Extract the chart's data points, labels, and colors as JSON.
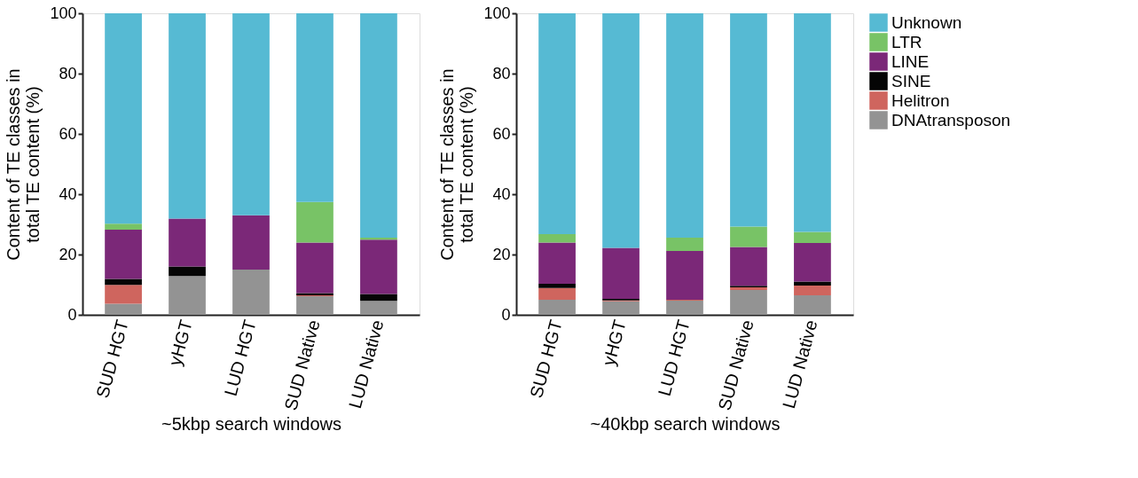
{
  "chart_data": [
    {
      "type": "bar",
      "stacked": true,
      "xlabel": "~5kbp search windows",
      "ylabel": "Content of TE classes in\ntotal TE content (%)",
      "categories": [
        "SUD HGT",
        "yHGT",
        "LUD HGT",
        "SUD Native",
        "LUD Native"
      ],
      "ylim": [
        0,
        100
      ],
      "yticks": [
        0,
        20,
        40,
        60,
        80,
        100
      ],
      "grid": false,
      "legend": false,
      "series": [
        {
          "color": "#939393",
          "values": [
            3.7,
            12.9,
            15.0,
            6.2,
            4.6
          ]
        },
        {
          "color": "#cf655e",
          "values": [
            6.2,
            0,
            0,
            0.3,
            0
          ]
        },
        {
          "color": "#050505",
          "values": [
            2.0,
            3.1,
            0,
            0.7,
            2.3
          ]
        },
        {
          "color": "#7b2878",
          "values": [
            16.3,
            15.9,
            18.0,
            16.8,
            18.0
          ]
        },
        {
          "color": "#78c366",
          "values": [
            2.0,
            0,
            0,
            13.4,
            0.7
          ]
        },
        {
          "color": "#56bad3",
          "values": [
            69.8,
            68.1,
            67.0,
            62.6,
            74.4
          ]
        }
      ]
    },
    {
      "type": "bar",
      "stacked": true,
      "xlabel": "~40kbp search windows",
      "ylabel": "Content of TE classes in\ntotal TE content (%)",
      "categories": [
        "SUD HGT",
        "yHGT",
        "LUD HGT",
        "SUD Native",
        "LUD Native"
      ],
      "ylim": [
        0,
        100
      ],
      "yticks": [
        0,
        20,
        40,
        60,
        80,
        100
      ],
      "grid": false,
      "legend": "right",
      "series": [
        {
          "name": "DNAtransposon",
          "color": "#939393",
          "values": [
            5.0,
            4.5,
            4.7,
            8.2,
            6.5
          ]
        },
        {
          "name": "Helitron",
          "color": "#cf655e",
          "values": [
            3.9,
            0.3,
            0.3,
            0.9,
            3.2
          ]
        },
        {
          "name": "SINE",
          "color": "#050505",
          "values": [
            1.4,
            0.5,
            0,
            0.5,
            1.3
          ]
        },
        {
          "name": "LINE",
          "color": "#7b2878",
          "values": [
            13.7,
            16.9,
            16.2,
            12.9,
            12.8
          ]
        },
        {
          "name": "LTR",
          "color": "#78c366",
          "values": [
            2.8,
            0,
            4.4,
            6.8,
            3.7
          ]
        },
        {
          "name": "Unknown",
          "color": "#56bad3",
          "values": [
            73.2,
            77.8,
            74.4,
            70.7,
            72.5
          ]
        }
      ]
    }
  ]
}
